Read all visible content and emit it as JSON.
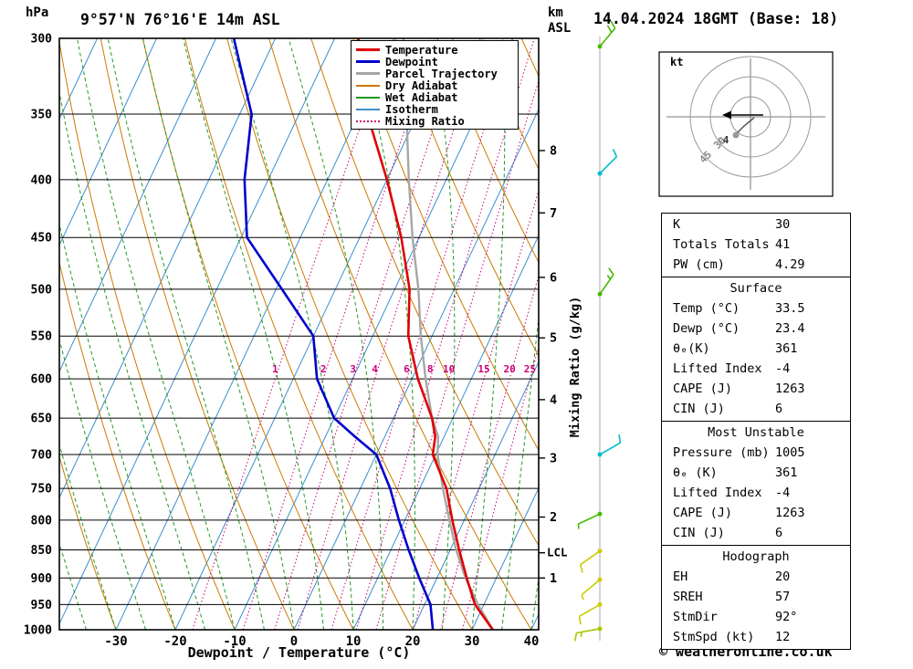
{
  "title": "9°57'N 76°16'E 14m ASL",
  "header_right": "14.04.2024 18GMT (Base: 18)",
  "footer": "© weatheronline.co.uk",
  "axes": {
    "pressure_unit": "hPa",
    "km_unit": "km",
    "asl_label": "ASL",
    "x_title": "Dewpoint / Temperature (°C)",
    "right_title": "Mixing Ratio (g/kg)",
    "lcl_label": "LCL",
    "pressure_ticks": [
      300,
      350,
      400,
      450,
      500,
      550,
      600,
      650,
      700,
      750,
      800,
      850,
      900,
      950,
      1000
    ],
    "temp_ticks": [
      -30,
      -20,
      -10,
      0,
      10,
      20,
      30,
      40
    ]
  },
  "legend": {
    "items": [
      {
        "label": "Temperature",
        "color": "#e00000",
        "style": "solid",
        "w": 3
      },
      {
        "label": "Dewpoint",
        "color": "#0000cc",
        "style": "solid",
        "w": 3
      },
      {
        "label": "Parcel Trajectory",
        "color": "#a6a6a6",
        "style": "solid",
        "w": 3
      },
      {
        "label": "Dry Adiabat",
        "color": "#cc7a00",
        "style": "solid",
        "w": 2
      },
      {
        "label": "Wet Adiabat",
        "color": "#229922",
        "style": "solid",
        "w": 2
      },
      {
        "label": "Isotherm",
        "color": "#3c8ecb",
        "style": "solid",
        "w": 2
      },
      {
        "label": "Mixing Ratio",
        "color": "#cc0077",
        "style": "dotted",
        "w": 2
      }
    ]
  },
  "colors": {
    "temperature": "#e00000",
    "dewpoint": "#0000cc",
    "parcel": "#a6a6a6",
    "dry_adiabat": "#cc7a00",
    "wet_adiabat": "#229922",
    "isotherm": "#3c8ecb",
    "mixing_ratio": "#cc0077",
    "frame": "#000000",
    "barb_staff": "#aaaaaa"
  },
  "chart_data": {
    "type": "line",
    "subtype": "skewt-log-p-sounding",
    "title": "9°57'N 76°16'E 14m ASL",
    "xlabel": "Dewpoint / Temperature (°C)",
    "ylabel": "hPa",
    "xlim": [
      -39.5,
      41.2
    ],
    "pressure_range_hPa": [
      300,
      1000
    ],
    "pressure_hPa": [
      1000,
      950,
      900,
      850,
      800,
      750,
      700,
      675,
      650,
      600,
      550,
      500,
      450,
      400,
      350,
      300
    ],
    "series": [
      {
        "name": "Temperature",
        "values": [
          33.5,
          28.5,
          25,
          21.5,
          18,
          14.5,
          9.5,
          8.5,
          6.5,
          1,
          -4,
          -7.5,
          -13,
          -20,
          -28.5,
          -36
        ]
      },
      {
        "name": "Dewpoint",
        "values": [
          23.4,
          21,
          17,
          13,
          9,
          5,
          0,
          -5,
          -10,
          -16,
          -20,
          -29,
          -39,
          -44,
          -48,
          -57
        ]
      },
      {
        "name": "Parcel Trajectory",
        "values": [
          33.5,
          29,
          24.8,
          21,
          17.5,
          13.9,
          10.3,
          9,
          6.5,
          2.3,
          -1.9,
          -6,
          -11.1,
          -16.3,
          -21.9,
          -28.4
        ]
      }
    ],
    "mixing_ratio_lines_gkg": [
      1,
      2,
      3,
      4,
      6,
      8,
      10,
      15,
      20,
      25
    ],
    "mixing_ratio_labels": [
      "1",
      "2",
      "3",
      "4",
      "6",
      "8",
      "10",
      "15",
      "20",
      "25"
    ],
    "isotherm_step_C": 10,
    "dry_adiabat_step_C": 10,
    "wet_adiabat_step_C": 5,
    "km_marks": [
      {
        "km": "1",
        "p": 900
      },
      {
        "km": "2",
        "p": 795
      },
      {
        "km": "3",
        "p": 705
      },
      {
        "km": "4",
        "p": 626
      },
      {
        "km": "5",
        "p": 552
      },
      {
        "km": "6",
        "p": 488
      },
      {
        "km": "7",
        "p": 428
      },
      {
        "km": "8",
        "p": 377
      }
    ],
    "lcl": {
      "label": "LCL",
      "p": 855
    },
    "wind_barbs": [
      {
        "p": 305,
        "angle": 50,
        "ticks": [
          10,
          10
        ],
        "color": "#44bb00"
      },
      {
        "p": 395,
        "angle": 45,
        "ticks": [
          10
        ],
        "color": "#00bbcc"
      },
      {
        "p": 505,
        "angle": 55,
        "ticks": [
          10,
          5
        ],
        "color": "#44bb00"
      },
      {
        "p": 700,
        "angle": 30,
        "ticks": [
          10
        ],
        "color": "#00bbcc"
      },
      {
        "p": 790,
        "angle": -155,
        "ticks": [
          5
        ],
        "color": "#44bb00"
      },
      {
        "p": 852,
        "angle": -145,
        "ticks": [
          10
        ],
        "color": "#cccc00"
      },
      {
        "p": 903,
        "angle": -140,
        "ticks": [
          5
        ],
        "color": "#cccc00"
      },
      {
        "p": 950,
        "angle": -150,
        "ticks": [
          10
        ],
        "color": "#cccc00"
      },
      {
        "p": 998,
        "angle": -170,
        "ticks": [
          10,
          5
        ],
        "color": "#a8c800"
      }
    ]
  },
  "hodograph": {
    "unit_label": "kt",
    "rings_kt": [
      15,
      30,
      45
    ],
    "ring_labels": [
      {
        "text": "30",
        "r_kt": 30
      },
      {
        "text": "45",
        "r_kt": 45
      }
    ],
    "height_label": "4",
    "storm_dir": "92°",
    "storm_speed_kt": 12
  },
  "stats": {
    "sections": [
      {
        "header": null,
        "rows": [
          [
            "K",
            "30"
          ],
          [
            "Totals Totals",
            "41"
          ],
          [
            "PW (cm)",
            "4.29"
          ]
        ]
      },
      {
        "header": "Surface",
        "rows": [
          [
            "Temp (°C)",
            "33.5"
          ],
          [
            "Dewp (°C)",
            "23.4"
          ],
          [
            "θₑ(K)",
            "361"
          ],
          [
            "Lifted Index",
            "-4"
          ],
          [
            "CAPE (J)",
            "1263"
          ],
          [
            "CIN (J)",
            "6"
          ]
        ]
      },
      {
        "header": "Most Unstable",
        "rows": [
          [
            "Pressure (mb)",
            "1005"
          ],
          [
            "θₑ (K)",
            "361"
          ],
          [
            "Lifted Index",
            "-4"
          ],
          [
            "CAPE (J)",
            "1263"
          ],
          [
            "CIN (J)",
            "6"
          ]
        ]
      },
      {
        "header": "Hodograph",
        "rows": [
          [
            "EH",
            "20"
          ],
          [
            "SREH",
            "57"
          ],
          [
            "StmDir",
            "92°"
          ],
          [
            "StmSpd (kt)",
            "12"
          ]
        ]
      }
    ]
  }
}
